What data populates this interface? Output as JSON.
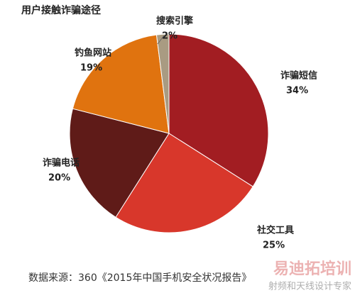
{
  "chart_data": {
    "type": "pie",
    "title": "用户接触诈骗途径",
    "categories": [
      "诈骗短信",
      "社交工具",
      "诈骗电话",
      "钓鱼网站",
      "搜索引擎"
    ],
    "values": [
      34,
      25,
      20,
      19,
      2
    ],
    "value_labels": [
      "34%",
      "25%",
      "20%",
      "19%",
      "2%"
    ],
    "colors": [
      "#a21d22",
      "#d8372b",
      "#5f1b18",
      "#e0730f",
      "#a99b82"
    ],
    "source": "数据来源：360《2015年中国手机安全状况报告》",
    "watermark": [
      "易迪拓培训",
      "射频和天线设计专家"
    ]
  }
}
